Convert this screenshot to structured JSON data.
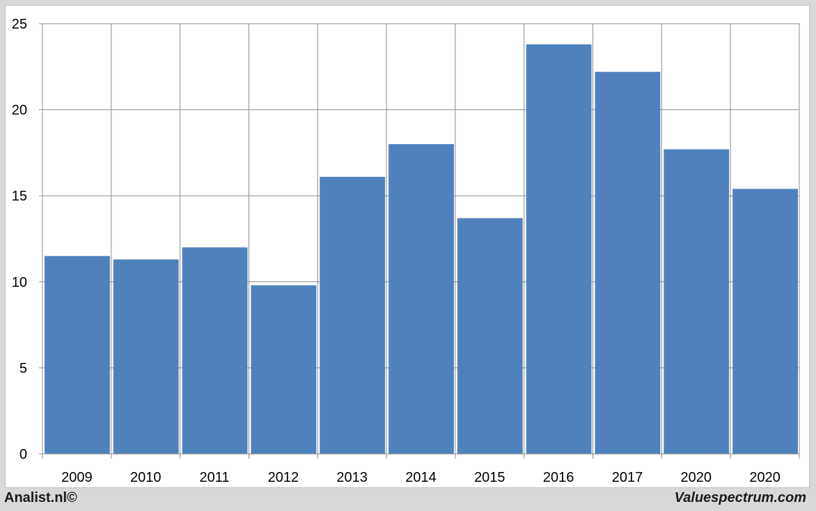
{
  "chart_data": {
    "type": "bar",
    "categories": [
      "2009",
      "2010",
      "2011",
      "2012",
      "2013",
      "2014",
      "2015",
      "2016",
      "2017",
      "2020",
      "2020"
    ],
    "values": [
      11.5,
      11.3,
      12.0,
      9.8,
      16.1,
      18.0,
      13.7,
      23.8,
      22.2,
      17.7,
      15.4
    ],
    "title": "",
    "xlabel": "",
    "ylabel": "",
    "ylim": [
      0,
      25
    ],
    "yticks": [
      "0",
      "5",
      "10",
      "15",
      "20",
      "25"
    ],
    "grid": true,
    "bar_color": "#4f81bd"
  },
  "footer": {
    "left": "Analist.nl©",
    "right": "Valuespectrum.com"
  }
}
